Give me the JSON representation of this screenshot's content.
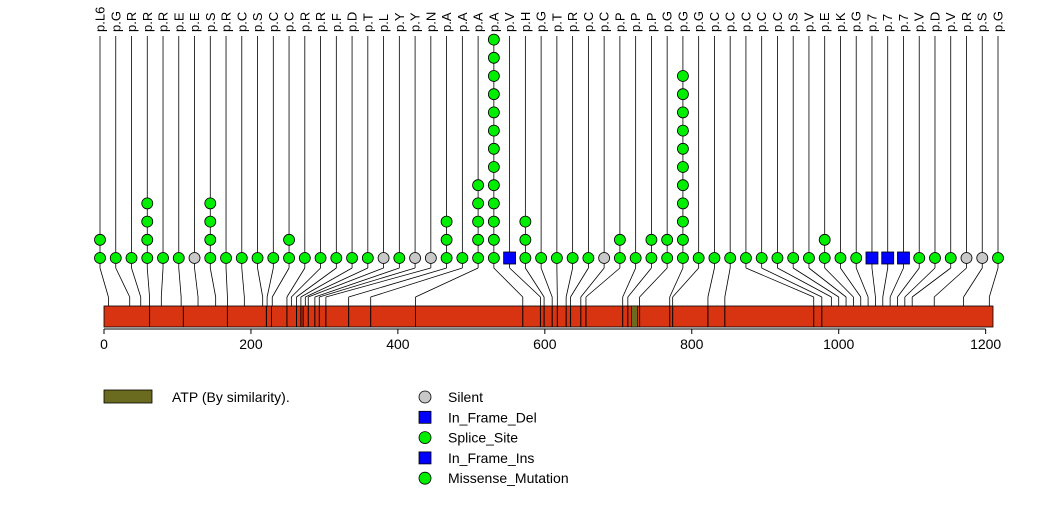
{
  "chart_data": {
    "type": "lollipop",
    "title": "",
    "xlim": [
      0,
      1210
    ],
    "protein_length": 1210,
    "ticks": [
      0,
      200,
      400,
      600,
      800,
      1000,
      1200
    ],
    "tick_labels": [
      "0",
      "200",
      "400",
      "600",
      "800",
      "1000",
      "1200"
    ],
    "colors": {
      "protein": "#d93412",
      "domain": "#6b6b1f",
      "silent": "#c8c8c8",
      "inframe_del": "#0000ff",
      "splice_site": "#00ee00",
      "inframe_ins": "#0000ff",
      "missense": "#00ee00"
    },
    "legend": {
      "domains": [
        {
          "label": "ATP (By similarity).",
          "color": "#6b6b1f"
        }
      ],
      "mutation_types": [
        {
          "label": "Silent",
          "shape": "circle",
          "color": "#c8c8c8"
        },
        {
          "label": "In_Frame_Del",
          "shape": "square",
          "color": "#0000ff"
        },
        {
          "label": "Splice_Site",
          "shape": "circle",
          "color": "#00ee00"
        },
        {
          "label": "In_Frame_Ins",
          "shape": "square",
          "color": "#0000ff"
        },
        {
          "label": "Missense_Mutation",
          "shape": "circle",
          "color": "#00ee00"
        }
      ]
    },
    "domains": [
      {
        "name": "ATP (By similarity).",
        "start": 718,
        "end": 726
      }
    ],
    "exon_boundaries": [
      62,
      108,
      168,
      221,
      228,
      249,
      262,
      268,
      271,
      278,
      287,
      293,
      302,
      333,
      363,
      424,
      570,
      594,
      599,
      610,
      617,
      629,
      635,
      649,
      656,
      706,
      713,
      729,
      770,
      774,
      822,
      845,
      966,
      977
    ],
    "mutations": [
      {
        "label": "p.L6",
        "pos": 6,
        "count": 2,
        "type": "missense"
      },
      {
        "label": "p.G",
        "pos": 35,
        "count": 1,
        "type": "missense"
      },
      {
        "label": "p.R",
        "pos": 50,
        "count": 1,
        "type": "missense"
      },
      {
        "label": "p.R",
        "pos": 62,
        "count": 4,
        "type": "missense"
      },
      {
        "label": "p.R",
        "pos": 78,
        "count": 1,
        "type": "missense"
      },
      {
        "label": "p.E",
        "pos": 105,
        "count": 1,
        "type": "missense"
      },
      {
        "label": "p.E",
        "pos": 128,
        "count": 1,
        "type": "silent"
      },
      {
        "label": "p.S",
        "pos": 152,
        "count": 4,
        "type": "missense"
      },
      {
        "label": "p.R",
        "pos": 168,
        "count": 1,
        "type": "missense"
      },
      {
        "label": "p.C",
        "pos": 191,
        "count": 1,
        "type": "missense"
      },
      {
        "label": "p.S",
        "pos": 216,
        "count": 1,
        "type": "missense"
      },
      {
        "label": "p.C",
        "pos": 222,
        "count": 1,
        "type": "missense"
      },
      {
        "label": "p.C",
        "pos": 229,
        "count": 2,
        "type": "missense"
      },
      {
        "label": "p.R",
        "pos": 249,
        "count": 1,
        "type": "missense"
      },
      {
        "label": "p.R",
        "pos": 255,
        "count": 1,
        "type": "missense"
      },
      {
        "label": "p.F",
        "pos": 262,
        "count": 1,
        "type": "missense"
      },
      {
        "label": "p.D",
        "pos": 268,
        "count": 1,
        "type": "missense"
      },
      {
        "label": "p.T",
        "pos": 274,
        "count": 1,
        "type": "missense"
      },
      {
        "label": "p.L",
        "pos": 278,
        "count": 1,
        "type": "silent"
      },
      {
        "label": "p.Y",
        "pos": 287,
        "count": 1,
        "type": "missense"
      },
      {
        "label": "p.Y",
        "pos": 293,
        "count": 1,
        "type": "silent"
      },
      {
        "label": "p.N",
        "pos": 302,
        "count": 1,
        "type": "silent"
      },
      {
        "label": "p.A",
        "pos": 333,
        "count": 3,
        "type": "missense"
      },
      {
        "label": "p.A",
        "pos": 363,
        "count": 1,
        "type": "missense"
      },
      {
        "label": "p.A",
        "pos": 424,
        "count": 5,
        "type": "missense"
      },
      {
        "label": "p.A",
        "pos": 570,
        "count": 13,
        "type": "missense"
      },
      {
        "label": "p.V",
        "pos": 594,
        "count": 1,
        "type": "inframe_del"
      },
      {
        "label": "p.H",
        "pos": 599,
        "count": 3,
        "type": "missense"
      },
      {
        "label": "p.G",
        "pos": 610,
        "count": 1,
        "type": "missense"
      },
      {
        "label": "p.T",
        "pos": 617,
        "count": 1,
        "type": "missense"
      },
      {
        "label": "p.R",
        "pos": 629,
        "count": 1,
        "type": "missense"
      },
      {
        "label": "p.C",
        "pos": 635,
        "count": 1,
        "type": "missense"
      },
      {
        "label": "p.C",
        "pos": 649,
        "count": 1,
        "type": "silent"
      },
      {
        "label": "p.P",
        "pos": 656,
        "count": 2,
        "type": "missense"
      },
      {
        "label": "p.P",
        "pos": 706,
        "count": 1,
        "type": "missense"
      },
      {
        "label": "p.P",
        "pos": 713,
        "count": 2,
        "type": "missense"
      },
      {
        "label": "p.G",
        "pos": 729,
        "count": 2,
        "type": "missense"
      },
      {
        "label": "p.G",
        "pos": 770,
        "count": 11,
        "type": "missense"
      },
      {
        "label": "p.G",
        "pos": 774,
        "count": 1,
        "type": "missense"
      },
      {
        "label": "p.C",
        "pos": 822,
        "count": 1,
        "type": "missense"
      },
      {
        "label": "p.C",
        "pos": 845,
        "count": 1,
        "type": "missense"
      },
      {
        "label": "p.C",
        "pos": 966,
        "count": 1,
        "type": "missense"
      },
      {
        "label": "p.C",
        "pos": 977,
        "count": 1,
        "type": "missense"
      },
      {
        "label": "p.C",
        "pos": 990,
        "count": 1,
        "type": "missense"
      },
      {
        "label": "p.S",
        "pos": 1000,
        "count": 1,
        "type": "missense"
      },
      {
        "label": "p.V",
        "pos": 1010,
        "count": 1,
        "type": "missense"
      },
      {
        "label": "p.E",
        "pos": 1020,
        "count": 2,
        "type": "missense"
      },
      {
        "label": "p.K",
        "pos": 1030,
        "count": 1,
        "type": "missense"
      },
      {
        "label": "p.G",
        "pos": 1040,
        "count": 1,
        "type": "missense"
      },
      {
        "label": "p.7",
        "pos": 1050,
        "count": 1,
        "type": "inframe_ins"
      },
      {
        "label": "p.7",
        "pos": 1060,
        "count": 1,
        "type": "inframe_ins"
      },
      {
        "label": "p.7",
        "pos": 1070,
        "count": 1,
        "type": "inframe_ins"
      },
      {
        "label": "p.V",
        "pos": 1080,
        "count": 1,
        "type": "missense"
      },
      {
        "label": "p.D",
        "pos": 1090,
        "count": 1,
        "type": "missense"
      },
      {
        "label": "p.V",
        "pos": 1100,
        "count": 1,
        "type": "missense"
      },
      {
        "label": "p.R",
        "pos": 1130,
        "count": 1,
        "type": "silent"
      },
      {
        "label": "p.S",
        "pos": 1170,
        "count": 1,
        "type": "silent"
      },
      {
        "label": "p.G",
        "pos": 1205,
        "count": 1,
        "type": "missense"
      }
    ]
  }
}
